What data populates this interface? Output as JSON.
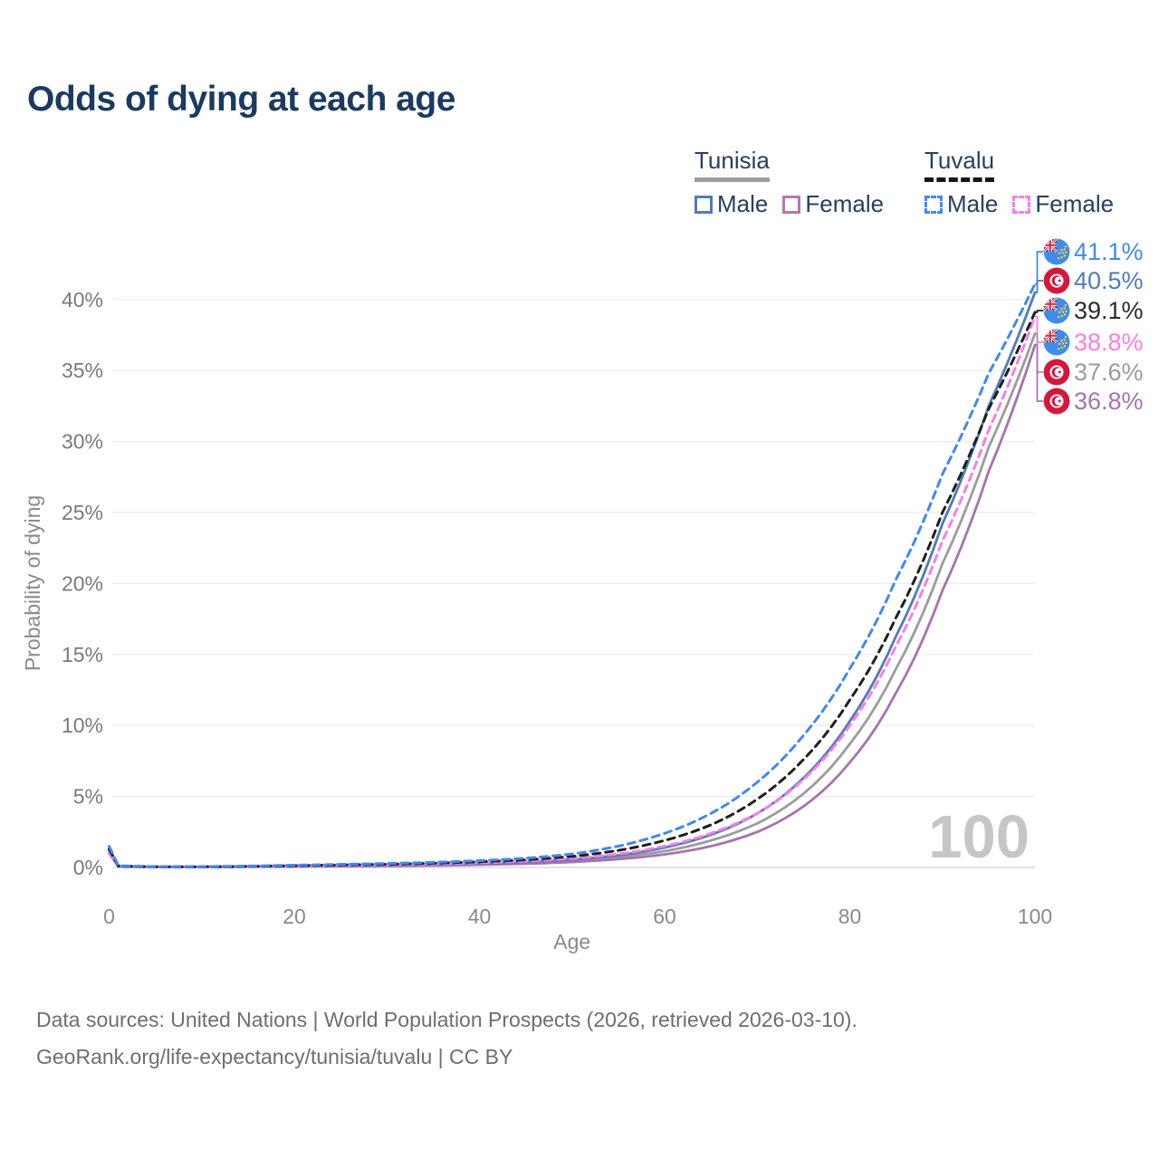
{
  "title": "Odds of dying at each age",
  "legend": {
    "groups": [
      {
        "country": "Tunisia",
        "line_style": "solid",
        "line_color": "#9e9e9e",
        "items": [
          {
            "label": "Male",
            "color": "#4e7cb8",
            "dash": false
          },
          {
            "label": "Female",
            "color": "#b776b0",
            "dash": false
          }
        ]
      },
      {
        "country": "Tuvalu",
        "line_style": "dashed",
        "line_color": "#161616",
        "items": [
          {
            "label": "Male",
            "color": "#4189ef",
            "dash": true
          },
          {
            "label": "Female",
            "color": "#f97ee6",
            "dash": true
          }
        ]
      }
    ]
  },
  "chart_data": {
    "type": "line",
    "title": "Odds of dying at each age",
    "xlabel": "Age",
    "ylabel": "Probability of dying",
    "xlim": [
      0,
      100
    ],
    "ylim": [
      0,
      44
    ],
    "x_ticks": [
      0,
      20,
      40,
      60,
      80,
      100
    ],
    "y_ticks": [
      {
        "value": 0,
        "label": "0%"
      },
      {
        "value": 5,
        "label": "5%"
      },
      {
        "value": 10,
        "label": "10%"
      },
      {
        "value": 15,
        "label": "15%"
      },
      {
        "value": 20,
        "label": "20%"
      },
      {
        "value": 25,
        "label": "25%"
      },
      {
        "value": 30,
        "label": "30%"
      },
      {
        "value": 35,
        "label": "35%"
      },
      {
        "value": 40,
        "label": "40%"
      }
    ],
    "grid": true,
    "legend_position": "top-right",
    "watermark": "100",
    "x": [
      0,
      1,
      5,
      10,
      15,
      20,
      25,
      30,
      35,
      40,
      45,
      50,
      55,
      60,
      65,
      70,
      75,
      80,
      85,
      90,
      95,
      100
    ],
    "series": [
      {
        "name": "Tuvalu Male",
        "country": "Tuvalu",
        "sex": "Male",
        "flag": "tuvalu",
        "color": "#4189ef",
        "dash": true,
        "end_label": "41.1%",
        "end_value": 41.1,
        "zorder": 6,
        "values": [
          1.5,
          0.12,
          0.06,
          0.06,
          0.1,
          0.16,
          0.22,
          0.28,
          0.36,
          0.48,
          0.65,
          0.95,
          1.5,
          2.4,
          3.8,
          6.0,
          9.3,
          14.0,
          20.3,
          27.7,
          34.8,
          41.1
        ]
      },
      {
        "name": "Tunisia Male",
        "country": "Tunisia",
        "sex": "Male",
        "flag": "tunisia",
        "color": "#4e7cb8",
        "dash": false,
        "end_label": "40.5%",
        "end_value": 40.5,
        "zorder": 3,
        "values": [
          1.2,
          0.08,
          0.04,
          0.04,
          0.06,
          0.09,
          0.12,
          0.15,
          0.2,
          0.27,
          0.38,
          0.56,
          0.85,
          1.4,
          2.3,
          3.8,
          6.3,
          10.3,
          16.3,
          24.2,
          32.5,
          40.5
        ]
      },
      {
        "name": "Tuvalu Both sexes",
        "country": "Tuvalu",
        "sex": "Both",
        "flag": "tuvalu",
        "color": "#1f1f1f",
        "dash": true,
        "end_label": "39.1%",
        "end_value": 39.1,
        "zorder": 5,
        "values": [
          1.3,
          0.1,
          0.05,
          0.05,
          0.08,
          0.13,
          0.18,
          0.23,
          0.3,
          0.4,
          0.54,
          0.78,
          1.2,
          1.9,
          3.0,
          4.8,
          7.6,
          11.8,
          17.6,
          25.0,
          32.3,
          39.1
        ]
      },
      {
        "name": "Tuvalu Female",
        "country": "Tuvalu",
        "sex": "Female",
        "flag": "tuvalu",
        "color": "#f97ee6",
        "dash": true,
        "end_label": "38.8%",
        "end_value": 38.8,
        "zorder": 4,
        "values": [
          1.1,
          0.09,
          0.05,
          0.05,
          0.07,
          0.1,
          0.14,
          0.18,
          0.24,
          0.32,
          0.44,
          0.63,
          0.95,
          1.5,
          2.4,
          3.8,
          6.2,
          10.0,
          15.6,
          23.0,
          30.8,
          38.8
        ]
      },
      {
        "name": "Tunisia Both sexes",
        "country": "Tunisia",
        "sex": "Both",
        "flag": "tunisia",
        "color": "#9c9c9c",
        "dash": false,
        "end_label": "37.6%",
        "end_value": 37.6,
        "zorder": 1,
        "values": [
          1.1,
          0.07,
          0.04,
          0.04,
          0.05,
          0.08,
          0.1,
          0.13,
          0.17,
          0.23,
          0.32,
          0.47,
          0.72,
          1.15,
          1.9,
          3.1,
          5.2,
          8.7,
          14.0,
          21.4,
          29.6,
          37.6
        ]
      },
      {
        "name": "Tunisia Female",
        "country": "Tunisia",
        "sex": "Female",
        "flag": "tunisia",
        "color": "#a872b0",
        "dash": false,
        "end_label": "36.8%",
        "end_value": 36.8,
        "zorder": 2,
        "values": [
          1.0,
          0.06,
          0.03,
          0.03,
          0.05,
          0.06,
          0.08,
          0.1,
          0.14,
          0.19,
          0.26,
          0.38,
          0.58,
          0.92,
          1.5,
          2.5,
          4.3,
          7.4,
          12.3,
          19.5,
          27.9,
          36.8
        ]
      }
    ],
    "flag_colors": {
      "tunisia_red": "#d4173b",
      "tuvalu_blue": "#3f8ceb",
      "jack_navy": "#22356f",
      "jack_red": "#d0314b",
      "star_yellow": "#ffd12e"
    },
    "label_text_colors": [
      "#4189ef",
      "#4e7cb8",
      "#2b2b2b",
      "#f97ee6",
      "#9c9c9c",
      "#a673ae"
    ]
  },
  "footer": {
    "line1": "Data sources: United Nations | World Population Prospects (2026, retrieved 2026-03-10).",
    "line2": "GeoRank.org/life-expectancy/tunisia/tuvalu | CC BY"
  }
}
